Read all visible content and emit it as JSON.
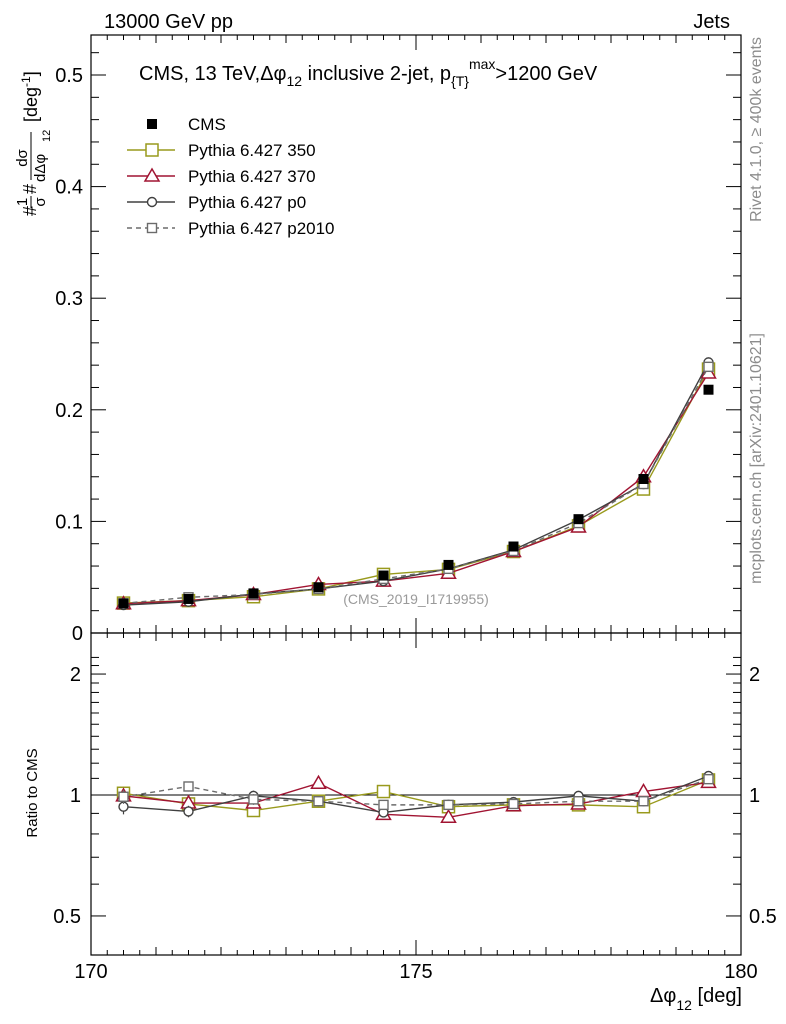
{
  "header": {
    "left": "13000 GeV pp",
    "right": "Jets"
  },
  "side_labels": {
    "rivet": "Rivet 4.1.0, ≥ 400k events",
    "mcplots": "mcplots.cern.ch [arXiv:2401.10621]"
  },
  "watermark": "(CMS_2019_I1719955)",
  "chart_data": [
    {
      "type": "scatter",
      "panel": "main",
      "title": "CMS, 13 TeV,Δφ₁₂ inclusive 2-jet,  p_{T}^{max}>1200 GeV",
      "title_parts": {
        "p1": "CMS, 13 TeV,",
        "dphi": "Δφ",
        "sub12": "12",
        "p2": " inclusive 2-jet,  p",
        "subT": "{T}",
        "supmax": "max",
        "p3": ">1200 GeV"
      },
      "ylabel": "#1/σ # dσ/dΔφ₁₂ [deg⁻¹]",
      "ylabel_parts": {
        "unit_open": "[deg",
        "unit_exp": "-1",
        "unit_close": "]",
        "hash1": "#",
        "one": "1",
        "sigma": "σ",
        "hash2": "#",
        "dsigma": "dσ",
        "ddphi": "dΔφ",
        "sub12": "12"
      },
      "xlim": [
        170,
        180
      ],
      "ylim": [
        0,
        0.54
      ],
      "yticks": [
        "0",
        "0.1",
        "0.2",
        "0.3",
        "0.4",
        "0.5"
      ],
      "x": [
        170.5,
        171.5,
        172.5,
        173.5,
        174.5,
        175.5,
        176.5,
        177.5,
        178.5,
        179.5
      ],
      "series": [
        {
          "name": "CMS",
          "color": "#000000",
          "marker": "filled-square",
          "values": [
            0.0265,
            0.0305,
            0.0355,
            0.041,
            0.0515,
            0.061,
            0.0775,
            0.102,
            0.138,
            0.218
          ]
        },
        {
          "name": "Pythia 6.427 350",
          "color": "#999a1d",
          "marker": "open-square",
          "values": [
            0.0268,
            0.029,
            0.0325,
            0.0395,
            0.0525,
            0.057,
            0.073,
            0.096,
            0.129,
            0.2365
          ]
        },
        {
          "name": "Pythia 6.427 370",
          "color": "#a11432",
          "marker": "open-triangle",
          "values": [
            0.0262,
            0.029,
            0.0345,
            0.0435,
            0.0465,
            0.0535,
            0.073,
            0.095,
            0.14,
            0.233
          ]
        },
        {
          "name": "Pythia 6.427 p0",
          "color": "#404040",
          "marker": "open-circle",
          "values": [
            0.025,
            0.028,
            0.035,
            0.0395,
            0.0465,
            0.0575,
            0.0745,
            0.1015,
            0.1335,
            0.2425
          ]
        },
        {
          "name": "Pythia 6.427 p2010",
          "color": "#6b6b6b",
          "marker": "open-square-small",
          "dashed": true,
          "values": [
            0.0265,
            0.032,
            0.0345,
            0.0395,
            0.0485,
            0.0575,
            0.0735,
            0.0985,
            0.1335,
            0.2385
          ]
        }
      ]
    },
    {
      "type": "scatter",
      "panel": "ratio",
      "ylabel": "Ratio to CMS",
      "xlabel": "Δφ₁₂ [deg]",
      "xlabel_parts": {
        "dphi": "Δφ",
        "sub12": "12",
        "unit": " [deg]"
      },
      "xlim": [
        170,
        180
      ],
      "ylim": [
        0.4,
        2.3
      ],
      "yscale": "log",
      "yticks": [
        "0.5",
        "1",
        "2"
      ],
      "xticks": [
        "170",
        "175",
        "180"
      ],
      "reference": 1,
      "x": [
        170.5,
        171.5,
        172.5,
        173.5,
        174.5,
        175.5,
        176.5,
        177.5,
        178.5,
        179.5
      ],
      "series": [
        {
          "name": "Pythia 6.427 350",
          "color": "#999a1d",
          "marker": "open-square",
          "values": [
            1.01,
            0.95,
            0.915,
            0.965,
            1.02,
            0.935,
            0.945,
            0.945,
            0.935,
            1.09
          ],
          "errors": [
            0.04,
            0.03,
            0.03,
            0.02,
            0.02,
            0.02,
            0.02,
            0.01,
            0.01,
            0.01
          ]
        },
        {
          "name": "Pythia 6.427 370",
          "color": "#a11432",
          "marker": "open-triangle",
          "values": [
            0.995,
            0.955,
            0.955,
            1.07,
            0.895,
            0.88,
            0.94,
            0.95,
            1.02,
            1.075
          ],
          "errors": [
            0.04,
            0.03,
            0.03,
            0.02,
            0.02,
            0.02,
            0.02,
            0.01,
            0.01,
            0.01
          ]
        },
        {
          "name": "Pythia 6.427 p0",
          "color": "#404040",
          "marker": "open-circle",
          "values": [
            0.935,
            0.91,
            0.995,
            0.965,
            0.905,
            0.945,
            0.96,
            0.995,
            0.965,
            1.115
          ],
          "errors": [
            0.04,
            0.03,
            0.03,
            0.02,
            0.02,
            0.02,
            0.02,
            0.01,
            0.01,
            0.01
          ]
        },
        {
          "name": "Pythia 6.427 p2010",
          "color": "#6b6b6b",
          "marker": "open-square-small",
          "dashed": true,
          "values": [
            0.99,
            1.05,
            0.975,
            0.965,
            0.945,
            0.945,
            0.95,
            0.965,
            0.965,
            1.095
          ],
          "errors": [
            0.04,
            0.03,
            0.03,
            0.02,
            0.02,
            0.02,
            0.02,
            0.01,
            0.01,
            0.01
          ]
        }
      ]
    }
  ]
}
